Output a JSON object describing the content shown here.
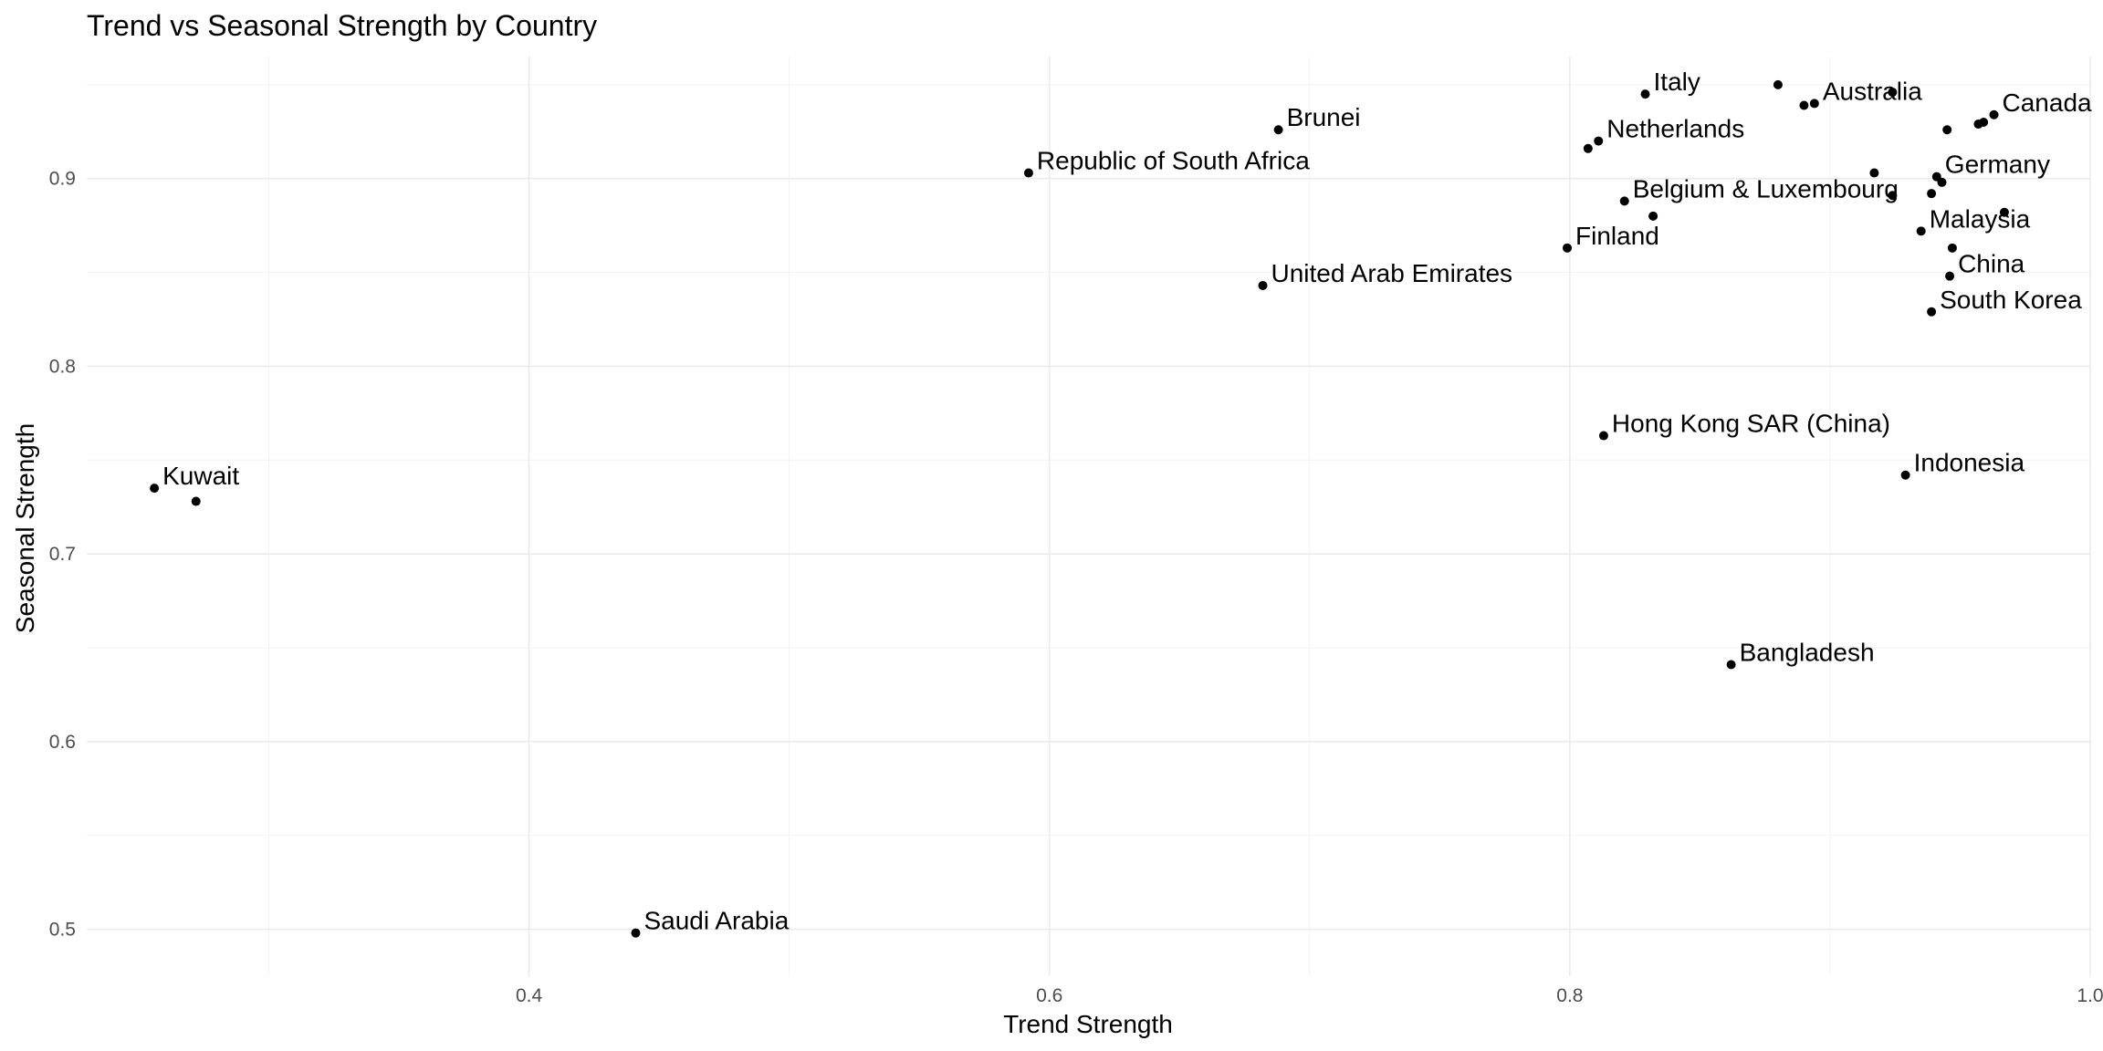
{
  "chart_data": {
    "type": "scatter",
    "title": "Trend vs Seasonal Strength by Country",
    "xlabel": "Trend Strength",
    "ylabel": "Seasonal Strength",
    "xlim": [
      0.23,
      1.0
    ],
    "ylim": [
      0.475,
      0.965
    ],
    "xticks": [
      0.4,
      0.6,
      0.8,
      1.0
    ],
    "xtick_labels": [
      "0.4",
      "0.6",
      "0.8",
      "1.0"
    ],
    "yticks": [
      0.5,
      0.6,
      0.7,
      0.8,
      0.9
    ],
    "ytick_labels": [
      "0.5",
      "0.6",
      "0.7",
      "0.8",
      "0.9"
    ],
    "grid": true,
    "legend": "none",
    "point_color": "#000000",
    "points": [
      {
        "x": 0.256,
        "y": 0.735,
        "label": "Kuwait"
      },
      {
        "x": 0.272,
        "y": 0.728,
        "label": ""
      },
      {
        "x": 0.441,
        "y": 0.498,
        "label": "Saudi Arabia"
      },
      {
        "x": 0.592,
        "y": 0.903,
        "label": "Republic of South Africa"
      },
      {
        "x": 0.682,
        "y": 0.843,
        "label": "United Arab Emirates"
      },
      {
        "x": 0.688,
        "y": 0.926,
        "label": "Brunei"
      },
      {
        "x": 0.799,
        "y": 0.863,
        "label": "Finland"
      },
      {
        "x": 0.807,
        "y": 0.916,
        "label": ""
      },
      {
        "x": 0.811,
        "y": 0.92,
        "label": "Netherlands"
      },
      {
        "x": 0.813,
        "y": 0.763,
        "label": "Hong Kong SAR (China)"
      },
      {
        "x": 0.821,
        "y": 0.888,
        "label": "Belgium & Luxembourg"
      },
      {
        "x": 0.829,
        "y": 0.945,
        "label": "Italy"
      },
      {
        "x": 0.832,
        "y": 0.88,
        "label": ""
      },
      {
        "x": 0.862,
        "y": 0.641,
        "label": "Bangladesh"
      },
      {
        "x": 0.88,
        "y": 0.95,
        "label": ""
      },
      {
        "x": 0.89,
        "y": 0.939,
        "label": ""
      },
      {
        "x": 0.894,
        "y": 0.94,
        "label": "Australia"
      },
      {
        "x": 0.917,
        "y": 0.903,
        "label": ""
      },
      {
        "x": 0.924,
        "y": 0.946,
        "label": ""
      },
      {
        "x": 0.924,
        "y": 0.891,
        "label": ""
      },
      {
        "x": 0.929,
        "y": 0.742,
        "label": "Indonesia"
      },
      {
        "x": 0.935,
        "y": 0.872,
        "label": "Malaysia"
      },
      {
        "x": 0.939,
        "y": 0.892,
        "label": ""
      },
      {
        "x": 0.939,
        "y": 0.829,
        "label": "South Korea"
      },
      {
        "x": 0.941,
        "y": 0.901,
        "label": "Germany"
      },
      {
        "x": 0.943,
        "y": 0.898,
        "label": ""
      },
      {
        "x": 0.945,
        "y": 0.926,
        "label": ""
      },
      {
        "x": 0.946,
        "y": 0.848,
        "label": "China"
      },
      {
        "x": 0.947,
        "y": 0.863,
        "label": ""
      },
      {
        "x": 0.957,
        "y": 0.929,
        "label": ""
      },
      {
        "x": 0.959,
        "y": 0.93,
        "label": ""
      },
      {
        "x": 0.963,
        "y": 0.934,
        "label": "Canada"
      },
      {
        "x": 0.967,
        "y": 0.882,
        "label": ""
      }
    ]
  }
}
